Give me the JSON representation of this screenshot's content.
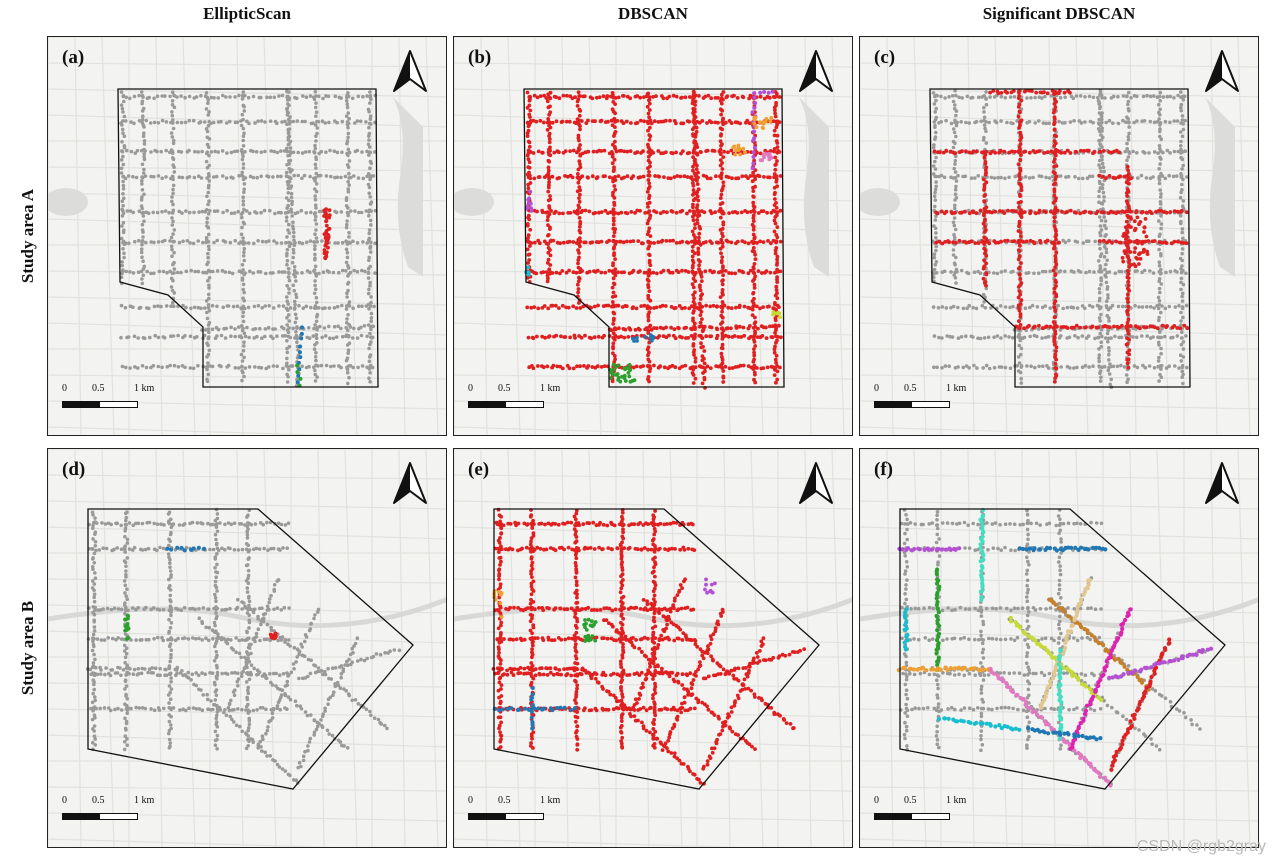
{
  "columns": [
    "EllipticScan",
    "DBSCAN",
    "Significant DBSCAN"
  ],
  "rows": [
    "Study area A",
    "Study area B"
  ],
  "panels": [
    {
      "label": "(a)",
      "area": "A",
      "scheme": "elliptic"
    },
    {
      "label": "(b)",
      "area": "A",
      "scheme": "dbscan"
    },
    {
      "label": "(c)",
      "area": "A",
      "scheme": "sig"
    },
    {
      "label": "(d)",
      "area": "B",
      "scheme": "elliptic"
    },
    {
      "label": "(e)",
      "area": "B",
      "scheme": "dbscan"
    },
    {
      "label": "(f)",
      "area": "B",
      "scheme": "sig"
    }
  ],
  "scale_bar": {
    "t0": "0",
    "t1": "0.5",
    "t2": "1 km"
  },
  "colors": {
    "noise": "#9a9a9a",
    "cluster_main": "#e02020",
    "blue": "#1f77b4",
    "green": "#2ca02c",
    "purple": "#b44fd6",
    "orange": "#f0a030",
    "pink": "#e377c2",
    "cyan": "#17becf",
    "lime": "#c6dc34",
    "teal": "#40e0c0",
    "brown": "#c87f2a",
    "tan": "#e0c890",
    "magenta": "#e020b0"
  },
  "watermark": "CSDN @rgb2gray"
}
